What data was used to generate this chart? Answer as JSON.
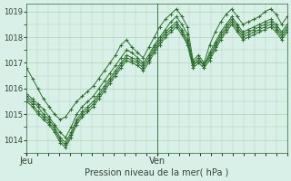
{
  "title": "",
  "xlabel": "Pression niveau de la mer( hPa )",
  "bg_color": "#d8f0e8",
  "plot_bg_color": "#d8f0e8",
  "grid_color": "#b0d4b0",
  "line_color": "#2d6e2d",
  "marker_color": "#2d6e2d",
  "ylim": [
    1013.5,
    1019.3
  ],
  "xlim": [
    0,
    48
  ],
  "yticks": [
    1014,
    1015,
    1016,
    1017,
    1018,
    1019
  ],
  "xtick_positions": [
    0,
    24
  ],
  "xtick_labels": [
    "Jeu",
    "Ven"
  ],
  "vline_x": 24,
  "series": [
    [
      1016.8,
      1016.4,
      1016.0,
      1015.6,
      1015.3,
      1015.0,
      1014.8,
      1014.9,
      1015.2,
      1015.5,
      1015.7,
      1015.9,
      1016.1,
      1016.4,
      1016.7,
      1017.0,
      1017.3,
      1017.7,
      1017.9,
      1017.6,
      1017.4,
      1017.2,
      1017.6,
      1018.0,
      1018.4,
      1018.7,
      1018.9,
      1019.1,
      1018.8,
      1018.4,
      1017.1,
      1017.3,
      1017.0,
      1017.7,
      1018.2,
      1018.6,
      1018.9,
      1019.1,
      1018.8,
      1018.5,
      1018.6,
      1018.7,
      1018.8,
      1019.0,
      1019.1,
      1018.9,
      1018.5,
      1018.8
    ],
    [
      1015.8,
      1015.6,
      1015.4,
      1015.2,
      1014.9,
      1014.6,
      1014.3,
      1014.1,
      1014.5,
      1015.0,
      1015.3,
      1015.5,
      1015.7,
      1016.0,
      1016.3,
      1016.6,
      1016.9,
      1017.2,
      1017.5,
      1017.4,
      1017.2,
      1017.0,
      1017.3,
      1017.7,
      1018.0,
      1018.3,
      1018.6,
      1018.8,
      1018.5,
      1018.1,
      1017.0,
      1017.2,
      1016.9,
      1017.4,
      1017.8,
      1018.2,
      1018.5,
      1018.8,
      1018.5,
      1018.2,
      1018.3,
      1018.4,
      1018.5,
      1018.6,
      1018.7,
      1018.5,
      1018.2,
      1018.5
    ],
    [
      1015.7,
      1015.5,
      1015.3,
      1015.0,
      1014.8,
      1014.5,
      1014.1,
      1013.9,
      1014.3,
      1014.8,
      1015.1,
      1015.3,
      1015.5,
      1015.8,
      1016.1,
      1016.4,
      1016.7,
      1017.0,
      1017.3,
      1017.2,
      1017.1,
      1016.9,
      1017.2,
      1017.6,
      1017.9,
      1018.2,
      1018.4,
      1018.6,
      1018.3,
      1017.9,
      1016.9,
      1017.1,
      1016.9,
      1017.3,
      1017.7,
      1018.1,
      1018.4,
      1018.7,
      1018.4,
      1018.1,
      1018.2,
      1018.3,
      1018.4,
      1018.5,
      1018.6,
      1018.4,
      1018.1,
      1018.4
    ],
    [
      1015.6,
      1015.4,
      1015.1,
      1014.9,
      1014.7,
      1014.4,
      1014.0,
      1013.8,
      1014.2,
      1014.7,
      1015.0,
      1015.2,
      1015.4,
      1015.7,
      1016.0,
      1016.3,
      1016.6,
      1016.9,
      1017.2,
      1017.1,
      1017.0,
      1016.8,
      1017.1,
      1017.5,
      1017.8,
      1018.1,
      1018.3,
      1018.5,
      1018.2,
      1017.8,
      1016.9,
      1017.1,
      1016.9,
      1017.2,
      1017.6,
      1018.0,
      1018.3,
      1018.6,
      1018.3,
      1018.0,
      1018.1,
      1018.2,
      1018.3,
      1018.4,
      1018.5,
      1018.3,
      1018.0,
      1018.3
    ],
    [
      1015.5,
      1015.3,
      1015.0,
      1014.8,
      1014.6,
      1014.3,
      1013.9,
      1013.7,
      1014.1,
      1014.6,
      1014.9,
      1015.1,
      1015.3,
      1015.6,
      1015.9,
      1016.2,
      1016.5,
      1016.8,
      1017.1,
      1017.0,
      1016.9,
      1016.7,
      1017.0,
      1017.4,
      1017.7,
      1018.0,
      1018.2,
      1018.4,
      1018.1,
      1017.7,
      1016.8,
      1017.0,
      1016.8,
      1017.1,
      1017.5,
      1017.9,
      1018.2,
      1018.5,
      1018.2,
      1017.9,
      1018.0,
      1018.1,
      1018.2,
      1018.3,
      1018.4,
      1018.2,
      1017.9,
      1018.2
    ]
  ]
}
